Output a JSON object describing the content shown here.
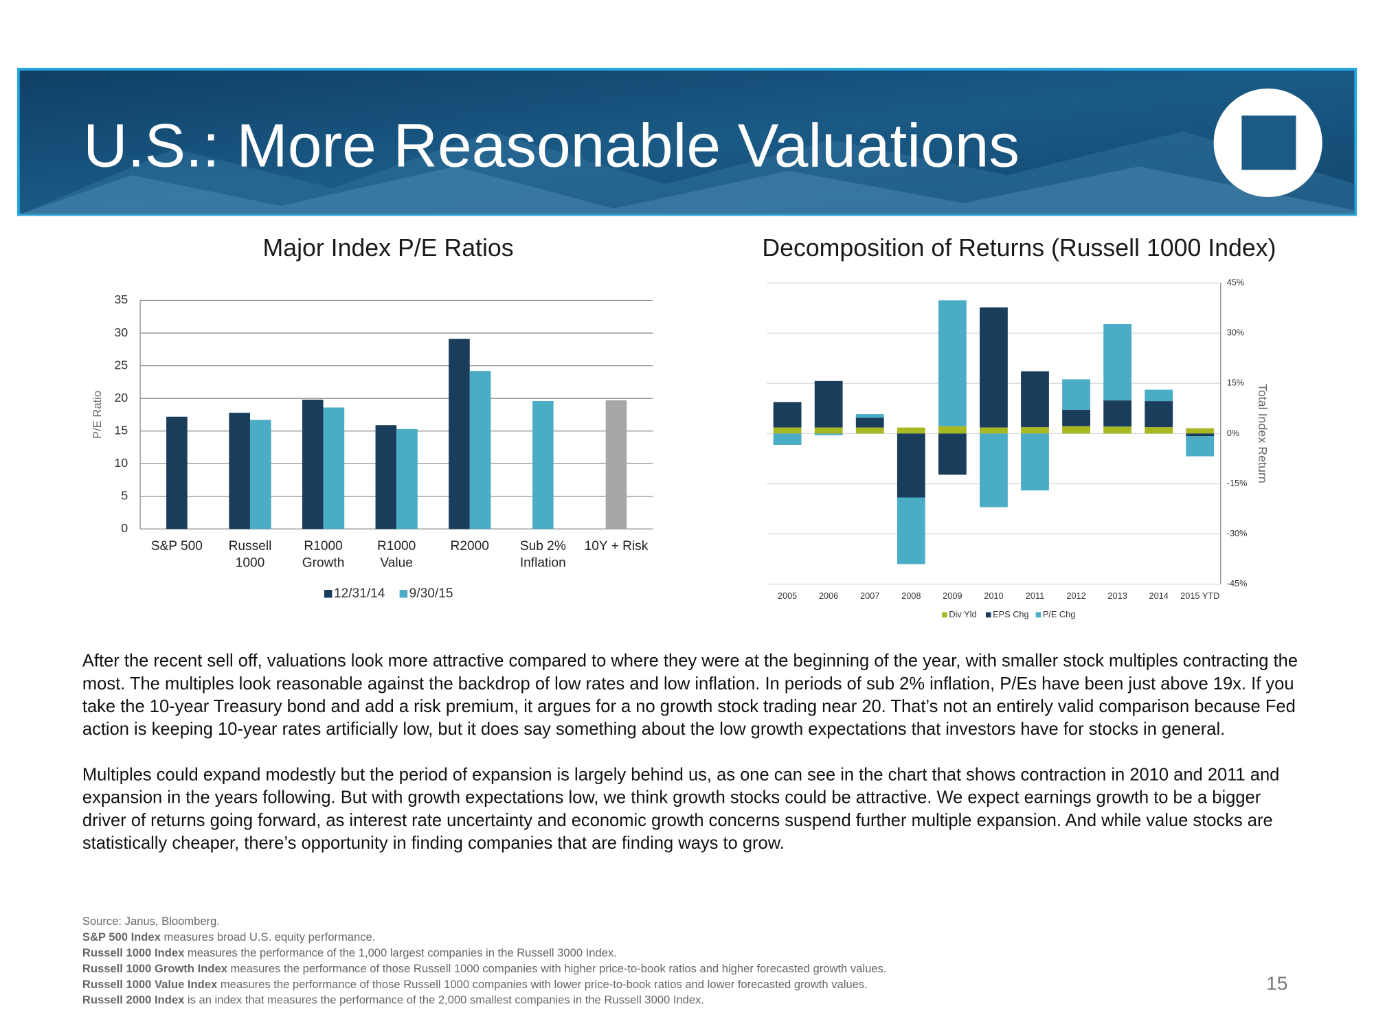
{
  "title": "U.S.: More Reasonable Valuations",
  "chart_data": [
    {
      "type": "bar",
      "title": "Major Index P/E Ratios",
      "y_label": "P/E Ratio",
      "categories": [
        "S&P 500",
        "Russell 1000",
        "R1000 Growth",
        "R1000 Value",
        "R2000",
        "Sub 2% Inflation",
        "10Y + Risk"
      ],
      "series": [
        {
          "name": "12/31/14",
          "color": "#1b3d5c",
          "values": [
            17.2,
            17.8,
            19.8,
            15.9,
            29.1,
            null,
            null
          ]
        },
        {
          "name": "9/30/15",
          "color": "#4bacc6",
          "values": [
            null,
            16.7,
            18.6,
            15.3,
            24.2,
            19.6,
            null
          ]
        },
        {
          "color": "#a5a7a9",
          "values": [
            null,
            null,
            null,
            null,
            null,
            null,
            19.7
          ]
        }
      ],
      "ylim": [
        0,
        35
      ],
      "yticks": [
        0,
        5,
        10,
        15,
        20,
        25,
        30,
        35
      ],
      "grid": true,
      "legend": "bottom"
    },
    {
      "type": "stacked_bar",
      "title": "Decomposition of Returns (Russell 1000 Index)",
      "y_label": "Total Index Return",
      "categories": [
        "2005",
        "2006",
        "2007",
        "2008",
        "2009",
        "2010",
        "2011",
        "2012",
        "2013",
        "2014",
        "2015 YTD"
      ],
      "series": [
        {
          "name": "Div Yld",
          "color": "#a8b820",
          "values": [
            1.8,
            1.8,
            1.8,
            1.8,
            2.2,
            1.8,
            1.9,
            2.2,
            2.1,
            1.9,
            1.6
          ]
        },
        {
          "name": "EPS Chg",
          "color": "#1b3d5c",
          "values": [
            7.6,
            13.9,
            2.9,
            -19.1,
            -12.3,
            35.9,
            16.7,
            4.9,
            7.8,
            7.8,
            -0.8
          ]
        },
        {
          "name": "P/E Chg",
          "color": "#4bacc6",
          "values": [
            -3.4,
            -0.5,
            1.1,
            -19.9,
            37.6,
            -22,
            -17,
            9.1,
            22.8,
            3.4,
            -6
          ]
        }
      ],
      "ylim": [
        -45,
        45
      ],
      "yticks": [
        {
          "value": -45,
          "label": "-45%"
        },
        {
          "value": -30,
          "label": "-30%"
        },
        {
          "value": -15,
          "label": "-15%"
        },
        {
          "value": 0,
          "label": "0%"
        },
        {
          "value": 15,
          "label": "15%"
        },
        {
          "value": 30,
          "label": "30%"
        },
        {
          "value": 45,
          "label": "45%"
        }
      ],
      "axis_side": "right",
      "grid": true,
      "legend": "bottom"
    }
  ],
  "body": [
    "After the recent sell off, valuations look more attractive compared to where they were at the beginning of the year, with smaller stock multiples contracting the most. The multiples look reasonable against the backdrop of low rates  and low inflation. In periods of sub 2% inflation, P/Es have been just above 19x. If you take the 10-year Treasury bond and add a risk premium, it argues for a no growth stock trading near 20. That’s not an entirely valid comparison because Fed action is keeping 10-year rates artificially low, but it does say something about the low growth expectations that investors have for stocks in general.",
    "Multiples could expand modestly but the period of expansion is largely behind us, as one can see in the chart that shows contraction in 2010 and 2011 and expansion in the years following. But with growth expectations low, we think growth stocks could be attractive. We expect earnings growth to be a bigger driver of returns going forward, as interest rate uncertainty and economic growth concerns suspend further multiple expansion.  And while value stocks are statistically cheaper, there’s opportunity in finding companies that are finding ways to grow."
  ],
  "footnotes": [
    {
      "text": "Source: Janus, Bloomberg."
    },
    {
      "term": "S&P 500 Index",
      "text": " measures broad U.S. equity performance. "
    },
    {
      "term": "Russell 1000 Index",
      "text": " measures the performance of the 1,000 largest companies in the Russell 3000 Index."
    },
    {
      "term": "Russell 1000 Growth Index",
      "text": " measures the performance of those Russell 1000 companies with higher price-to-book ratios and higher forecasted growth values."
    },
    {
      "term": "Russell 1000 Value Index",
      "text": " measures the performance of those Russell 1000 companies with lower price-to-book ratios and lower forecasted growth values."
    },
    {
      "term": "Russell 2000 Index",
      "text": " is an index that measures the performance of the 2,000 smallest companies in the Russell 3000 Index."
    }
  ],
  "page_number": 15
}
